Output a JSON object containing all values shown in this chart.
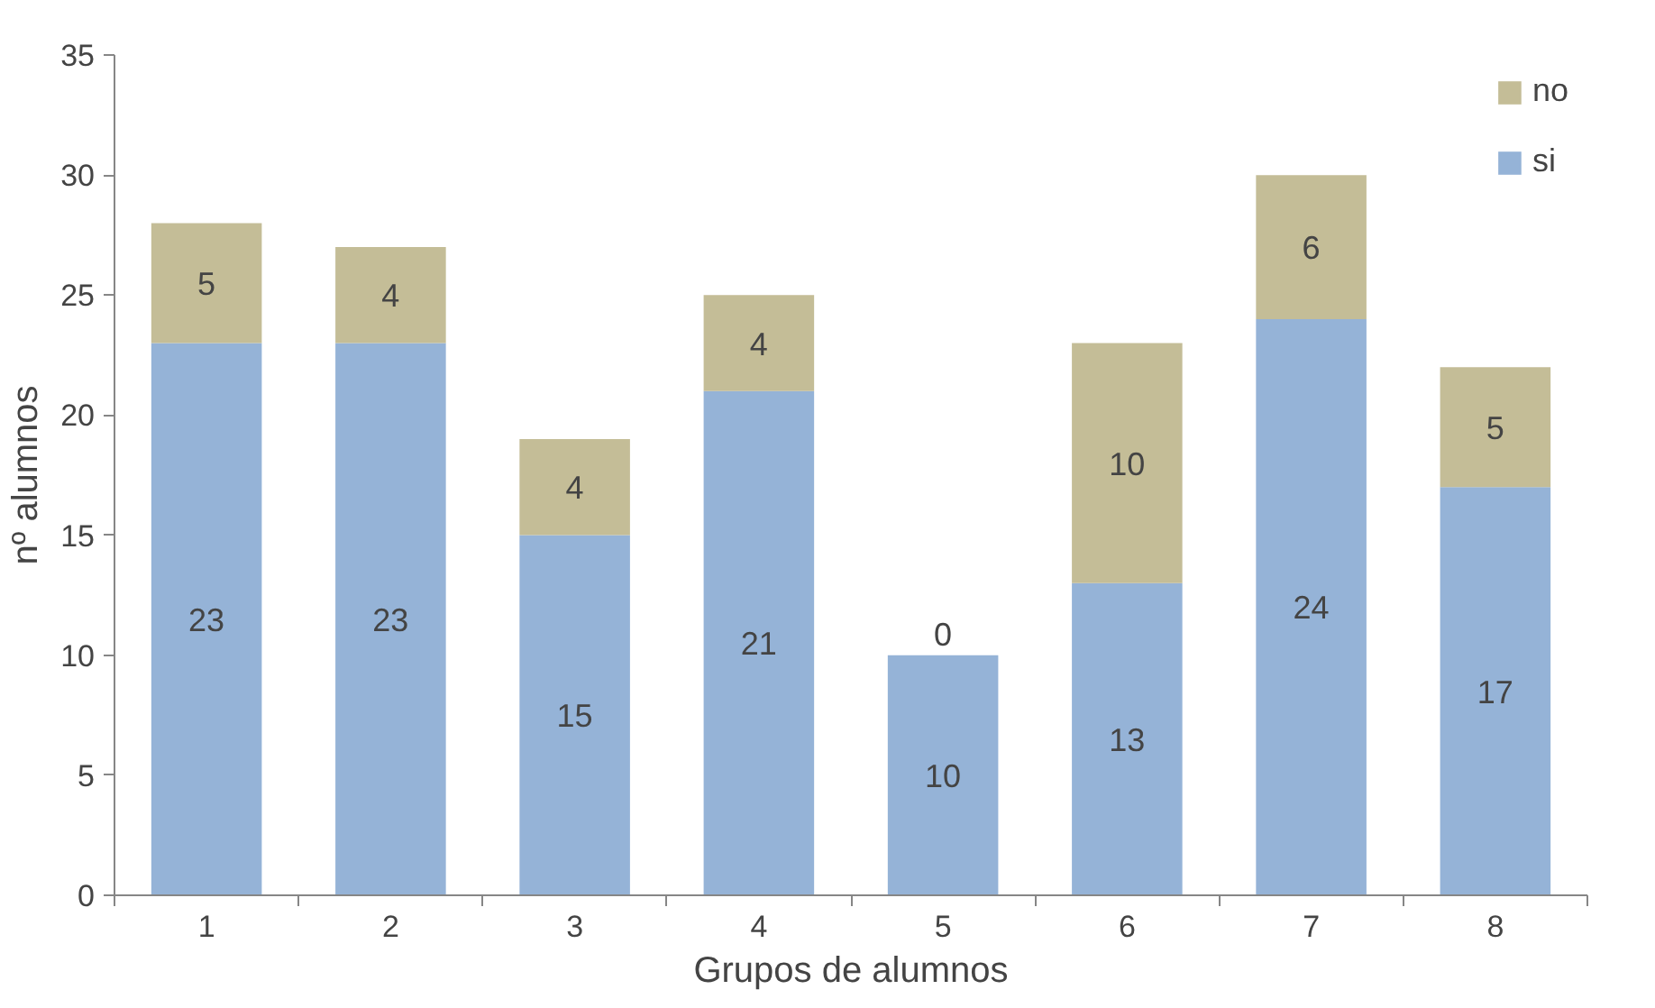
{
  "chart_data": {
    "type": "bar",
    "stacked": true,
    "xlabel": "Grupos de alumnos",
    "ylabel": "nº alumnos",
    "categories": [
      "1",
      "2",
      "3",
      "4",
      "5",
      "6",
      "7",
      "8"
    ],
    "series": [
      {
        "name": "si",
        "color": "#95b3d7",
        "values": [
          23,
          23,
          15,
          21,
          10,
          13,
          24,
          17
        ]
      },
      {
        "name": "no",
        "color": "#c4bd97",
        "values": [
          5,
          4,
          4,
          4,
          0,
          10,
          6,
          5
        ]
      }
    ],
    "ylim": [
      0,
      35
    ],
    "yticks": [
      0,
      5,
      10,
      15,
      20,
      25,
      30,
      35
    ],
    "grid": false,
    "legend": "top right",
    "data_labels": true
  }
}
